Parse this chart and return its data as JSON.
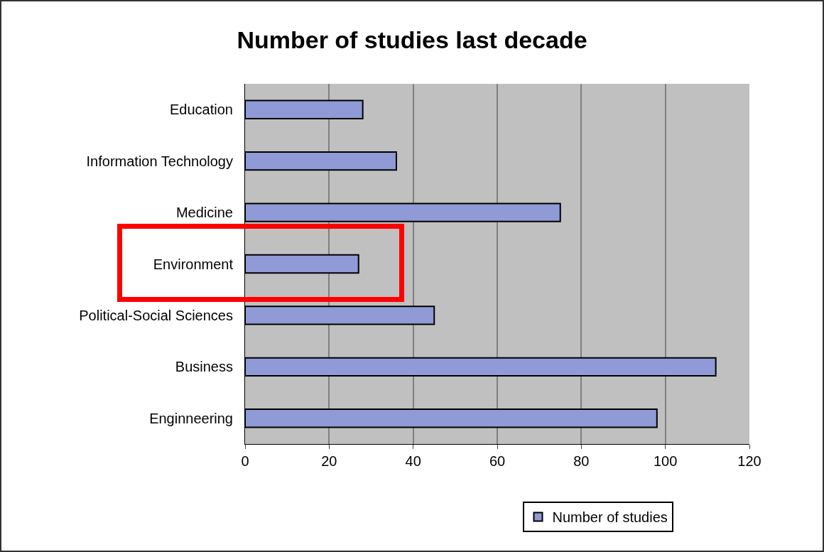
{
  "chart_data": {
    "type": "bar",
    "orientation": "horizontal",
    "title": "Number of studies last decade",
    "categories": [
      "Education",
      "Information Technology",
      "Medicine",
      "Environment",
      "Political-Social Sciences",
      "Business",
      "Enginneering"
    ],
    "series": [
      {
        "name": "Number of studies",
        "color": "#8f9ad6",
        "values": [
          28,
          36,
          75,
          27,
          45,
          112,
          98
        ]
      }
    ],
    "xlim": [
      0,
      120
    ],
    "xticks": [
      0,
      20,
      40,
      60,
      80,
      100,
      120
    ],
    "grid": "x",
    "legend": "bottom right"
  }
}
